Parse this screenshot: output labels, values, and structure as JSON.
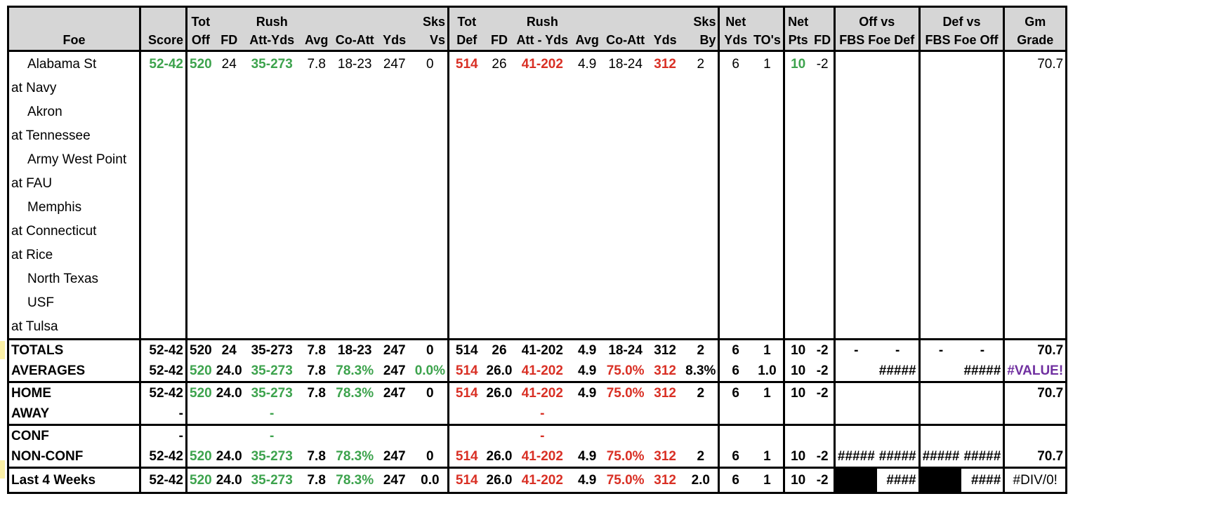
{
  "header_top": [
    "",
    "",
    "Tot",
    "",
    "Rush",
    "",
    "",
    "",
    "Sks",
    "Tot",
    "",
    "Rush",
    "",
    "",
    "",
    "Sks",
    "Net",
    "",
    "Net",
    "",
    "Off vs",
    "",
    "Def vs",
    "",
    "Gm"
  ],
  "header_bottom": [
    "Foe",
    "Score",
    "Off",
    "FD",
    "Att-Yds",
    "Avg",
    "Co-Att",
    "Yds",
    "Vs",
    "Def",
    "FD",
    "Att - Yds",
    "Avg",
    "Co-Att",
    "Yds",
    "By",
    "Yds",
    "TO's",
    "Pts",
    "FD",
    "FBS Foe Def",
    "",
    "FBS Foe Off",
    "",
    "Grade"
  ],
  "games": [
    {
      "foe": "Alabama St",
      "home": true,
      "vals": [
        "52-42",
        "520",
        "24",
        "35-273",
        "7.8",
        "18-23",
        "247",
        "0",
        "514",
        "26",
        "41-202",
        "4.9",
        "18-24",
        "312",
        "2",
        "6",
        "1",
        "10",
        "-2",
        "",
        "",
        "",
        "",
        "70.7"
      ]
    },
    {
      "foe": "at Navy",
      "home": false,
      "vals": []
    },
    {
      "foe": "Akron",
      "home": true,
      "vals": []
    },
    {
      "foe": "at Tennessee",
      "home": false,
      "vals": []
    },
    {
      "foe": "Army West Point",
      "home": true,
      "vals": []
    },
    {
      "foe": "at FAU",
      "home": false,
      "vals": []
    },
    {
      "foe": "Memphis",
      "home": true,
      "vals": []
    },
    {
      "foe": "at Connecticut",
      "home": false,
      "vals": []
    },
    {
      "foe": "at Rice",
      "home": false,
      "vals": []
    },
    {
      "foe": "North Texas",
      "home": true,
      "vals": []
    },
    {
      "foe": "USF",
      "home": true,
      "vals": []
    },
    {
      "foe": "at Tulsa",
      "home": false,
      "vals": []
    }
  ],
  "summary": [
    {
      "label": "TOTALS",
      "vals": [
        "52-42",
        "520",
        "24",
        "35-273",
        "7.8",
        "18-23",
        "247",
        "0",
        "514",
        "26",
        "41-202",
        "4.9",
        "18-24",
        "312",
        "2",
        "6",
        "1",
        "10",
        "-2",
        "-",
        "-",
        "-",
        "-",
        "70.7"
      ]
    },
    {
      "label": "AVERAGES",
      "vals": [
        "52-42",
        "520",
        "24.0",
        "35-273",
        "7.8",
        "78.3%",
        "247",
        "0.0%",
        "514",
        "26.0",
        "41-202",
        "4.9",
        "75.0%",
        "312",
        "8.3%",
        "6",
        "1.0",
        "10",
        "-2",
        "",
        "#####",
        "",
        "#####",
        "#VALUE!"
      ]
    },
    {
      "label": "HOME",
      "vals": [
        "52-42",
        "520",
        "24.0",
        "35-273",
        "7.8",
        "78.3%",
        "247",
        "0",
        "514",
        "26.0",
        "41-202",
        "4.9",
        "75.0%",
        "312",
        "2",
        "6",
        "1",
        "10",
        "-2",
        "",
        "",
        "",
        "",
        "70.7"
      ]
    },
    {
      "label": "AWAY",
      "vals": [
        "-",
        "",
        "",
        "-",
        "",
        "",
        "",
        "",
        "",
        "",
        "-",
        "",
        "",
        "",
        "",
        "",
        "",
        "",
        "",
        "",
        "",
        "",
        "",
        ""
      ]
    },
    {
      "label": "CONF",
      "vals": [
        "-",
        "",
        "",
        "-",
        "",
        "",
        "",
        "",
        "",
        "",
        "-",
        "",
        "",
        "",
        "",
        "",
        "",
        "",
        "",
        "",
        "",
        "",
        "",
        ""
      ]
    },
    {
      "label": "NON-CONF",
      "vals": [
        "52-42",
        "520",
        "24.0",
        "35-273",
        "7.8",
        "78.3%",
        "247",
        "0",
        "514",
        "26.0",
        "41-202",
        "4.9",
        "75.0%",
        "312",
        "2",
        "6",
        "1",
        "10",
        "-2",
        "#####",
        "#####",
        "#####",
        "#####",
        "70.7"
      ]
    },
    {
      "label": "Last 4 Weeks",
      "vals": [
        "52-42",
        "520",
        "24.0",
        "35-273",
        "7.8",
        "78.3%",
        "247",
        "0.0",
        "514",
        "26.0",
        "41-202",
        "4.9",
        "75.0%",
        "312",
        "2.0",
        "6",
        "1",
        "10",
        "-2",
        "",
        "####",
        "",
        "####",
        "#DIV/0!"
      ]
    }
  ],
  "colors": {
    "positive": "#3da34d",
    "negative": "#d93025",
    "error": "#7030a0",
    "header_bg": "#d6d6d6"
  }
}
